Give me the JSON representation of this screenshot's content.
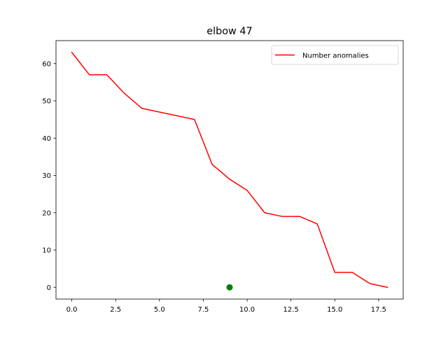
{
  "chart_data": {
    "type": "line",
    "title": "elbow 47",
    "xlabel": "",
    "ylabel": "",
    "xlim": [
      -0.9,
      18.9
    ],
    "ylim": [
      -3.15,
      66.15
    ],
    "xticks": [
      0.0,
      2.5,
      5.0,
      7.5,
      10.0,
      12.5,
      15.0,
      17.5
    ],
    "xtick_labels": [
      "0.0",
      "2.5",
      "5.0",
      "7.5",
      "10.0",
      "12.5",
      "15.0",
      "17.5"
    ],
    "yticks": [
      0,
      10,
      20,
      30,
      40,
      50,
      60
    ],
    "ytick_labels": [
      "0",
      "10",
      "20",
      "30",
      "40",
      "50",
      "60"
    ],
    "grid": false,
    "legend_position": "top-right",
    "series": [
      {
        "name": "Number anomalies",
        "color": "#ff0000",
        "kind": "line",
        "x": [
          0,
          1,
          2,
          3,
          4,
          5,
          6,
          7,
          8,
          9,
          10,
          11,
          12,
          13,
          14,
          15,
          16,
          17,
          18
        ],
        "y": [
          63,
          57,
          57,
          52,
          48,
          47,
          46,
          45,
          33,
          29,
          26,
          20,
          19,
          19,
          17,
          4,
          4,
          1,
          0
        ]
      }
    ],
    "markers": [
      {
        "x": 9,
        "y": 0,
        "color": "#008000",
        "kind": "point"
      }
    ]
  }
}
